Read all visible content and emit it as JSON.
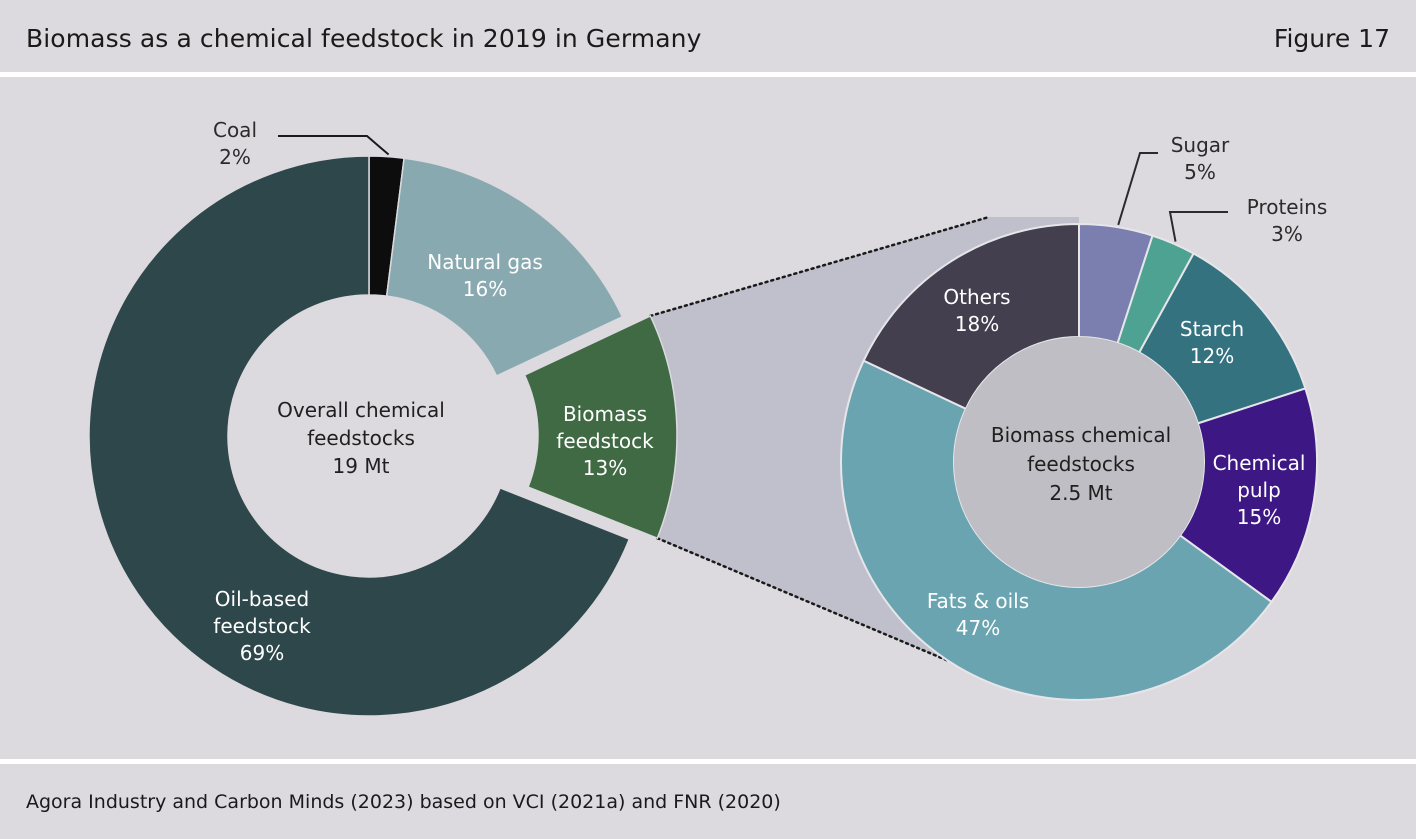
{
  "header": {
    "title": "Biomass as a chemical feedstock in 2019 in Germany",
    "figure_label": "Figure 17"
  },
  "footer": {
    "source": "Agora Industry and Carbon Minds (2023) based on VCI (2021a) and FNR (2020)"
  },
  "colors": {
    "background": "#dcdadf",
    "divider": "#ffffff",
    "connector_fill": "#bfc0cb"
  },
  "chart_data": [
    {
      "type": "pie",
      "variant": "donut",
      "center_label": [
        "Overall chemical",
        "feedstocks",
        "19 Mt"
      ],
      "slices": [
        {
          "label": [
            "Coal"
          ],
          "value": 2,
          "value_label": "2%",
          "color": "#0d0d0d"
        },
        {
          "label": [
            "Natural gas"
          ],
          "value": 16,
          "value_label": "16%",
          "color": "#89a9b1"
        },
        {
          "label": [
            "Biomass",
            "feedstock"
          ],
          "value": 13,
          "value_label": "13%",
          "color": "#3f6a43",
          "exploded": true
        },
        {
          "label": [
            "Oil-based",
            "feedstock"
          ],
          "value": 69,
          "value_label": "69%",
          "color": "#2e474b"
        }
      ]
    },
    {
      "type": "pie",
      "variant": "donut",
      "center_label": [
        "Biomass chemical",
        "feedstocks",
        "2.5 Mt"
      ],
      "slices": [
        {
          "label": [
            "Sugar"
          ],
          "value": 5,
          "value_label": "5%",
          "color": "#7a7fb0"
        },
        {
          "label": [
            "Proteins"
          ],
          "value": 3,
          "value_label": "3%",
          "color": "#4ea291"
        },
        {
          "label": [
            "Starch"
          ],
          "value": 12,
          "value_label": "12%",
          "color": "#347280"
        },
        {
          "label": [
            "Chemical",
            "pulp"
          ],
          "value": 15,
          "value_label": "15%",
          "color": "#3d1885"
        },
        {
          "label": [
            "Fats & oils"
          ],
          "value": 47,
          "value_label": "47%",
          "color": "#6aa4b0"
        },
        {
          "label": [
            "Others"
          ],
          "value": 18,
          "value_label": "18%",
          "color": "#433f4e"
        }
      ]
    }
  ]
}
